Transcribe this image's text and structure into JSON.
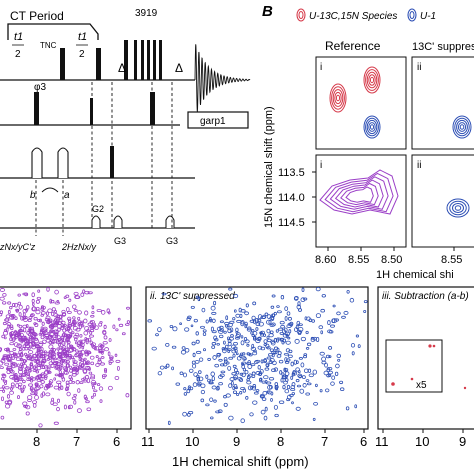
{
  "panel_b_label": "B",
  "legend": {
    "items": [
      {
        "label": "U-13C,15N Species",
        "color": "#d63a4a"
      },
      {
        "label": "U-1",
        "color": "#2d4fb5"
      }
    ]
  },
  "pulse_sequence": {
    "ct_period_label": "CT Period",
    "t1_half_left": "t1",
    "half_denominator": "2",
    "t_nc_label": "TNC",
    "t1_half_right": "t1",
    "half_denominator_right": "2",
    "phi3_label": "φ3",
    "delta_label_1": "Δ",
    "delta_label_2": "Δ",
    "pulse_3919": "3919",
    "garp1_label": "garp1",
    "b_label": "b",
    "a_label": "a",
    "g2_label": "G2",
    "g3_label_1": "G3",
    "g3_label_2": "G3",
    "hz_label": "2HzNx/y",
    "nxy_label": "zNx/yC'z"
  },
  "insets": {
    "reference_title": "Reference",
    "suppressed_title": "13C' suppres",
    "roman_i_top": "i",
    "roman_ii_top": "ii",
    "roman_i_bottom": "i",
    "roman_ii_bottom": "ii",
    "n15_axis_label": "15N chemical shift (ppm)",
    "h1_axis_label": "1H chemical shi",
    "y_ticks": [
      "113.5",
      "114.0",
      "114.5"
    ],
    "x_ticks": [
      "8.60",
      "8.55",
      "8.50",
      "8.55"
    ]
  },
  "spectra": {
    "panel_ii_title": "ii. 13C' suppressed",
    "panel_iii_title": "iii. Subtraction (a-b)",
    "x5_label": "x5",
    "left_ticks": [
      "8",
      "7",
      "6"
    ],
    "middle_ticks": [
      "11",
      "10",
      "9",
      "8",
      "7",
      "6"
    ],
    "right_ticks": [
      "11",
      "10",
      "9"
    ],
    "x_axis_label": "1H chemical shift (ppm)"
  },
  "colors": {
    "reference_red": "#d63a4a",
    "suppressed_blue": "#2d4fb5",
    "subtraction_purple": "#9b3fc7",
    "pulse_black": "#111111"
  }
}
